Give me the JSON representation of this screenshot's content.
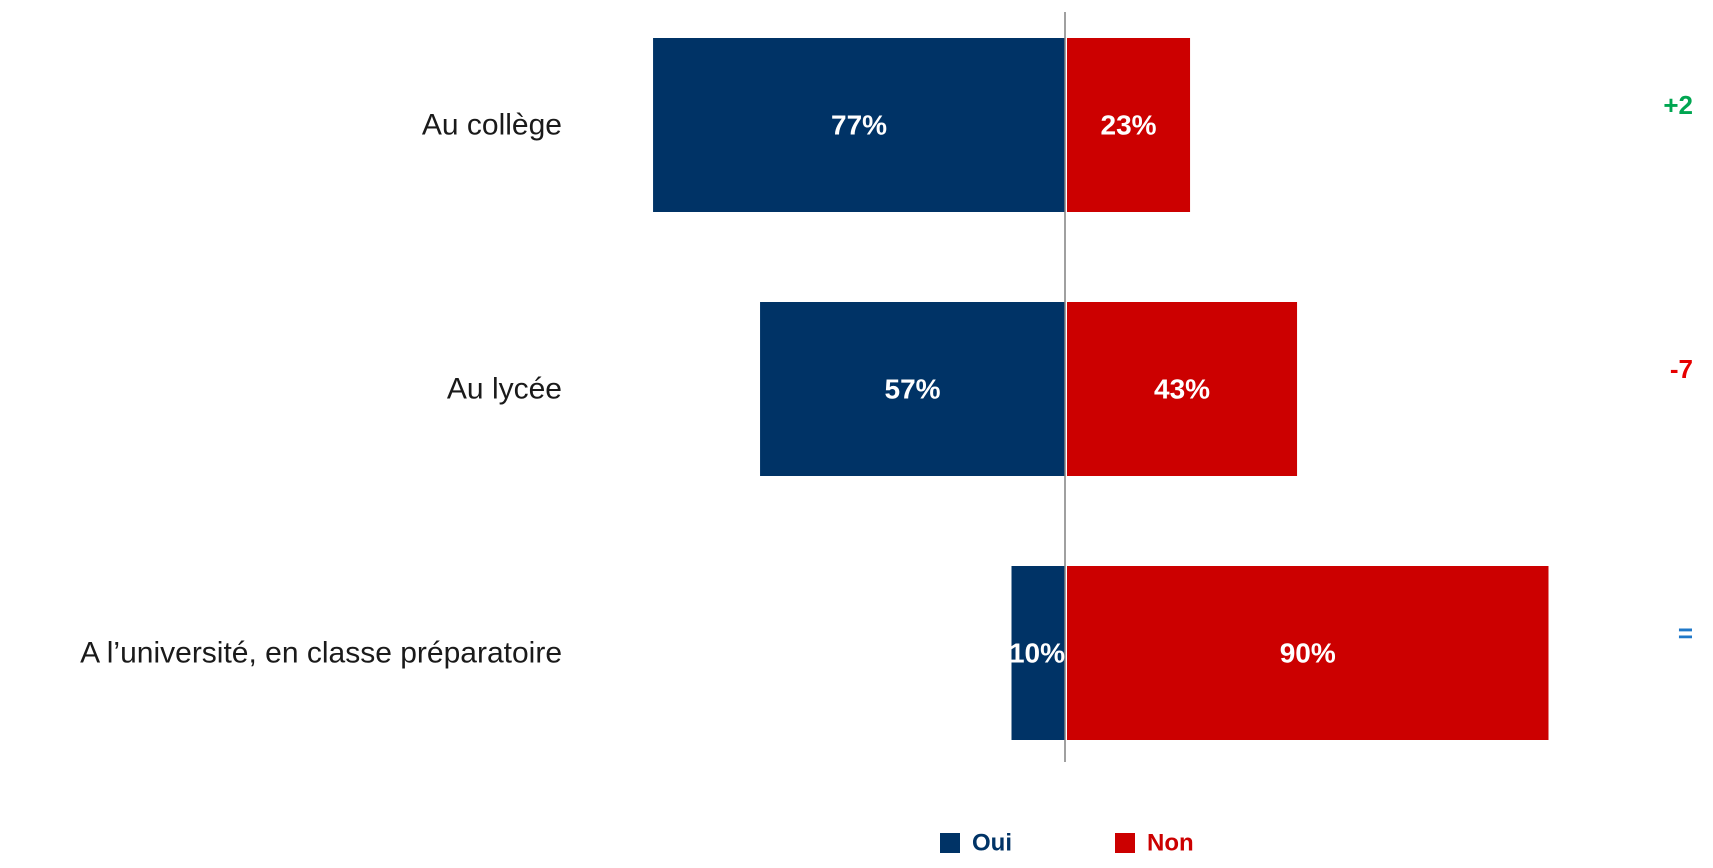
{
  "chart_data": {
    "type": "bar",
    "orientation": "horizontal-diverging",
    "categories": [
      "Au collège",
      "Au lycée",
      "A l’université, en classe préparatoire"
    ],
    "series": [
      {
        "name": "Oui",
        "values": [
          77,
          57,
          10
        ],
        "labels": [
          "77%",
          "57%",
          "10%"
        ],
        "color": "#003366"
      },
      {
        "name": "Non",
        "values": [
          23,
          43,
          90
        ],
        "labels": [
          "23%",
          "43%",
          "90%"
        ],
        "color": "#cc0000"
      }
    ],
    "evolution": [
      {
        "label": "+2",
        "color": "#00a651"
      },
      {
        "label": "-7",
        "color": "#e60000"
      },
      {
        "label": "=",
        "color": "#1f78c8"
      }
    ],
    "legend_position": "bottom-center",
    "axis_line_color": "#808080"
  }
}
